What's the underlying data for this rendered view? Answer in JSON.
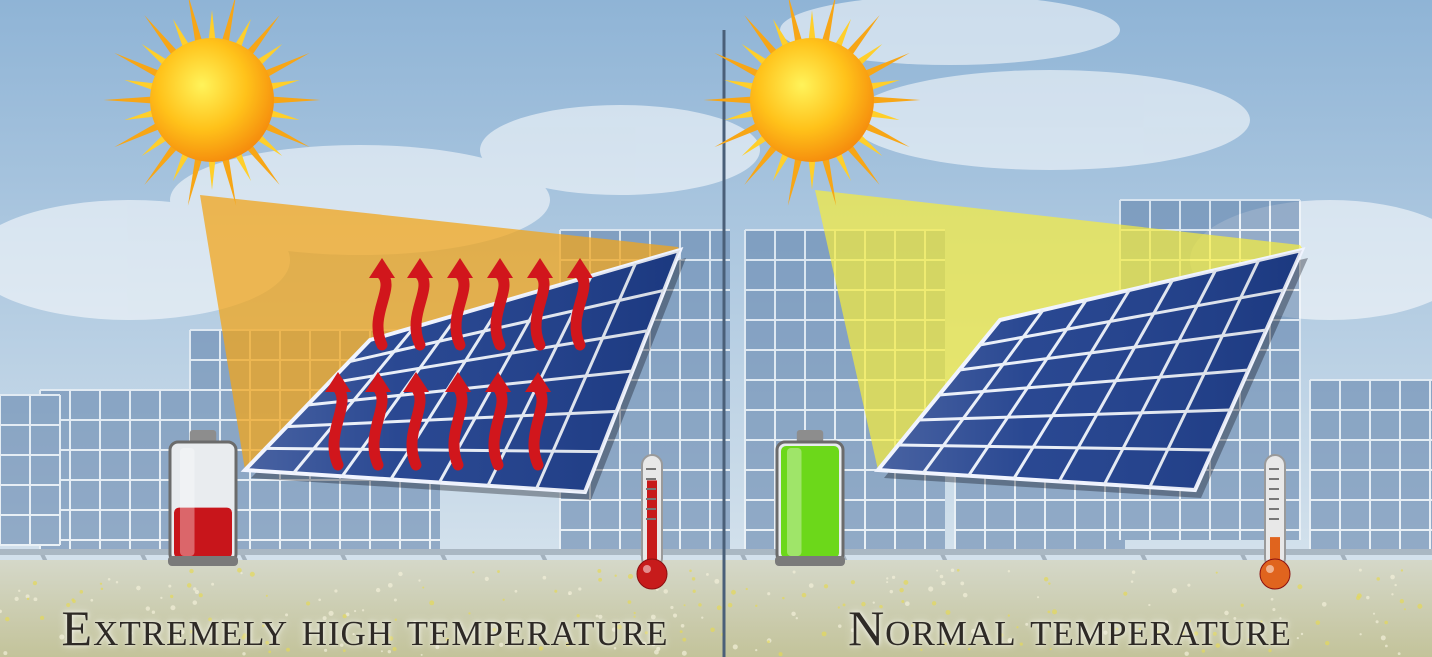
{
  "panels": [
    {
      "caption": "Extremely high temperature",
      "beam_color": "#f2a51c",
      "battery_level": 0.45,
      "battery_color": "#c8151b",
      "thermometer_level": 0.85,
      "thermometer_color": "#c71b1b",
      "heat_arrows": true
    },
    {
      "caption": "Normal temperature",
      "beam_color": "#f7ec3a",
      "battery_level": 1.0,
      "battery_color": "#6cd81a",
      "thermometer_level": 0.3,
      "thermometer_color": "#e0641e",
      "heat_arrows": false
    }
  ],
  "colors": {
    "sky_top": "#8fb4d6",
    "sky_bottom": "#d9e6ef",
    "panel_cell": "#1e3e8c",
    "panel_grid": "#e8eef8",
    "ground": "#c9c6a0",
    "divider": "#4a5f78",
    "arrow": "#d1161c"
  },
  "icons": [
    "sun-icon",
    "battery-icon",
    "thermometer-icon",
    "heat-arrow-icon",
    "solar-panel-icon"
  ]
}
